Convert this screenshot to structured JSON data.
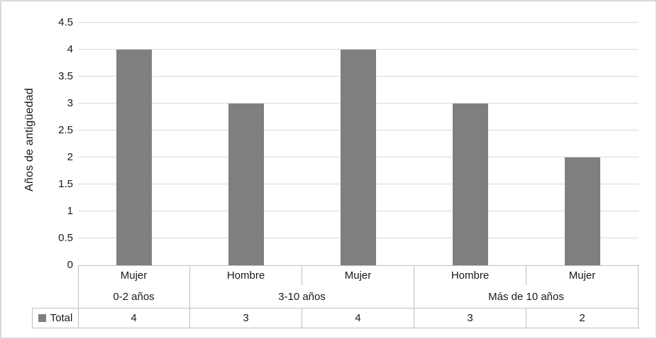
{
  "chart_data": {
    "type": "bar",
    "ylabel": "Años de antigüedad",
    "categories": [
      "Mujer",
      "Hombre",
      "Mujer",
      "Hombre",
      "Mujer"
    ],
    "category_groups": [
      {
        "label": "0-2 años",
        "span": 1
      },
      {
        "label": "3-10 años",
        "span": 2
      },
      {
        "label": "Más de 10 años",
        "span": 2
      }
    ],
    "series": [
      {
        "name": "Total",
        "values": [
          4,
          3,
          4,
          3,
          2
        ]
      }
    ],
    "ylim": [
      0,
      4.5
    ],
    "ytick_labels": [
      "0",
      "0.5",
      "1",
      "1.5",
      "2",
      "2.5",
      "3",
      "3.5",
      "4",
      "4.5"
    ],
    "grid": true,
    "legend_position": "bottom-data-table",
    "bar_color": "#7f7f7f",
    "data_table": {
      "legend_label": "Total",
      "values": [
        "4",
        "3",
        "4",
        "3",
        "2"
      ]
    }
  },
  "colors": {
    "bar": "#7f7f7f",
    "gridline": "#d9d9d9",
    "table_border": "#bfbfbf",
    "frame": "#d9d9d9",
    "text": "#1a1a1a"
  }
}
